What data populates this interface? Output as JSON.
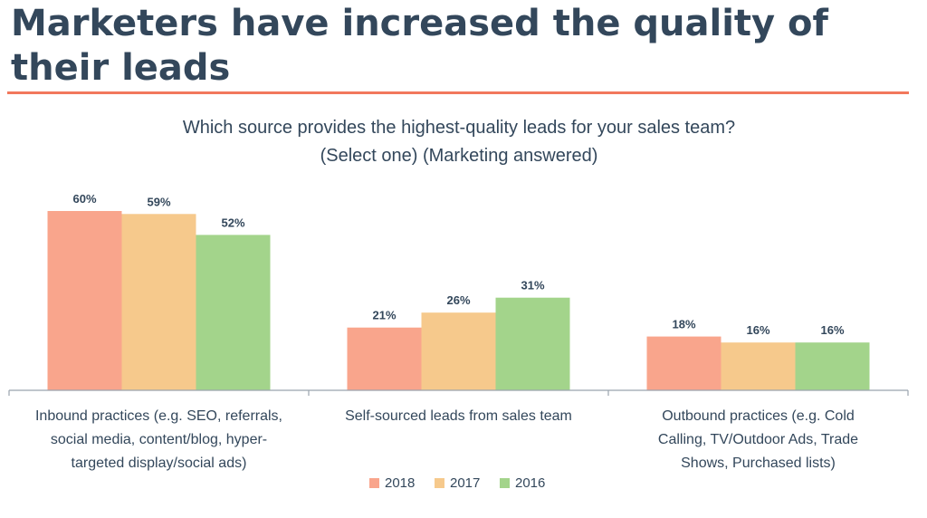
{
  "slide": {
    "title": "Marketers have increased the quality of their leads"
  },
  "colors": {
    "title": "#33475b",
    "accent_rule": "#f2785c",
    "axis": "#9aa4ae"
  },
  "chart_data": {
    "type": "bar",
    "title": "Which source provides the highest-quality leads for your sales team?",
    "subtitle": "(Select one) (Marketing answered)",
    "categories": [
      "Inbound practices (e.g. SEO, referrals, social media, content/blog, hyper-targeted display/social ads)",
      "Self-sourced leads from sales team",
      "Outbound practices (e.g. Cold Calling, TV/Outdoor Ads, Trade Shows, Purchased lists)"
    ],
    "category_lines": [
      [
        "Inbound practices (e.g. SEO, referrals,",
        "social media, content/blog, hyper-",
        "targeted display/social ads)"
      ],
      [
        "Self-sourced leads from sales team"
      ],
      [
        "Outbound practices (e.g. Cold",
        "Calling, TV/Outdoor Ads, Trade",
        "Shows, Purchased lists)"
      ]
    ],
    "series": [
      {
        "name": "2018",
        "color": "#f9a58c",
        "values": [
          60,
          21,
          18
        ],
        "labels": [
          "60%",
          "21%",
          "18%"
        ]
      },
      {
        "name": "2017",
        "color": "#f6c98c",
        "values": [
          59,
          26,
          16
        ],
        "labels": [
          "59%",
          "26%",
          "16%"
        ]
      },
      {
        "name": "2016",
        "color": "#a3d48b",
        "values": [
          52,
          31,
          16
        ],
        "labels": [
          "52%",
          "31%",
          "16%"
        ]
      }
    ],
    "unit": "%",
    "ylim": [
      0,
      70
    ],
    "grid": false,
    "legend_position": "bottom-center"
  }
}
